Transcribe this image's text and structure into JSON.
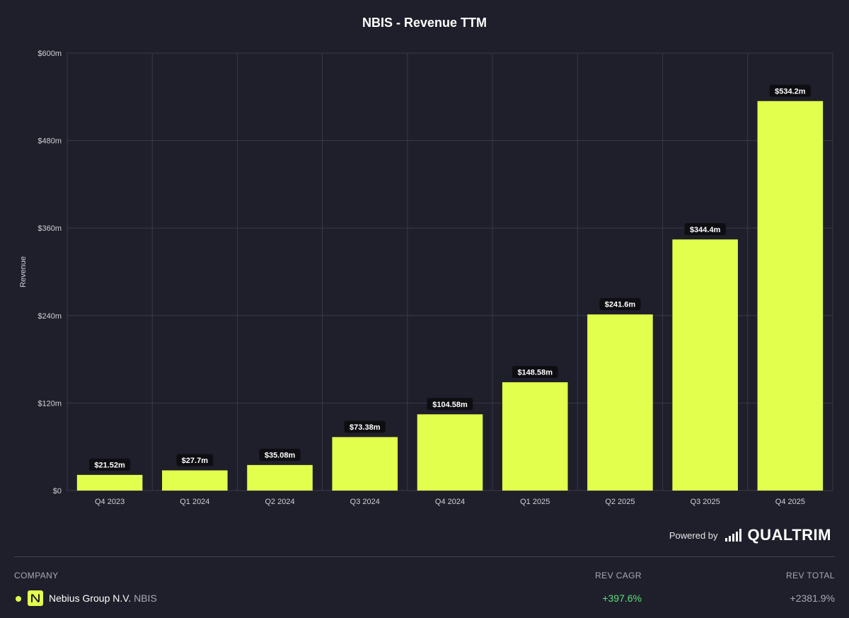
{
  "chart_data": {
    "type": "bar",
    "title": "NBIS - Revenue TTM",
    "xlabel": "",
    "ylabel": "Revenue",
    "ylim": [
      0,
      600
    ],
    "grid": true,
    "categories": [
      "Q4 2023",
      "Q1 2024",
      "Q2 2024",
      "Q3 2024",
      "Q4 2024",
      "Q1 2025",
      "Q2 2025",
      "Q3 2025",
      "Q4 2025"
    ],
    "values": [
      21.52,
      27.7,
      35.08,
      73.38,
      104.58,
      148.58,
      241.6,
      344.4,
      534.2
    ],
    "data_labels": [
      "$21.52m",
      "$27.7m",
      "$35.08m",
      "$73.38m",
      "$104.58m",
      "$148.58m",
      "$241.6m",
      "$344.4m",
      "$534.2m"
    ],
    "y_ticks": [
      0,
      120,
      240,
      360,
      480,
      600
    ],
    "y_tick_labels": [
      "$0",
      "$120m",
      "$240m",
      "$360m",
      "$480m",
      "$600m"
    ],
    "colors": {
      "bar": "#e3ff4d",
      "grid": "#3a3a48",
      "label_bg": "#0d0d12",
      "label_text": "#ffffff",
      "axis_text": "#d0d0d6"
    }
  },
  "footer": {
    "powered_by": "Powered by",
    "brand": "QUALTRIM"
  },
  "legend": {
    "columns": {
      "company": "COMPANY",
      "rev_cagr": "REV CAGR",
      "rev_total": "REV TOTAL"
    },
    "rows": [
      {
        "company": "Nebius Group N.V.",
        "ticker": "NBIS",
        "rev_cagr": "+397.6%",
        "rev_total": "+2381.9%",
        "color": "#e3ff4d"
      }
    ]
  }
}
